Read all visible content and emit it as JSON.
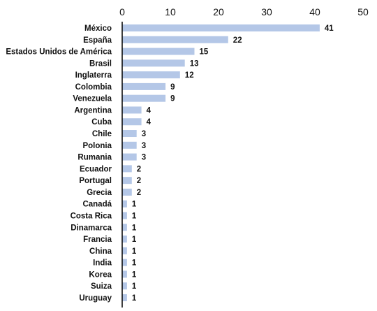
{
  "chart_data": {
    "type": "bar",
    "orientation": "horizontal",
    "categories": [
      "México",
      "España",
      "Estados Unidos de América",
      "Brasil",
      "Inglaterra",
      "Colombia",
      "Venezuela",
      "Argentina",
      "Cuba",
      "Chile",
      "Polonia",
      "Rumania",
      "Ecuador",
      "Portugal",
      "Grecia",
      "Canadá",
      "Costa Rica",
      "Dinamarca",
      "Francia",
      "China",
      "India",
      "Korea",
      "Suiza",
      "Uruguay"
    ],
    "values": [
      41,
      22,
      15,
      13,
      12,
      9,
      9,
      4,
      4,
      3,
      3,
      3,
      2,
      2,
      2,
      1,
      1,
      1,
      1,
      1,
      1,
      1,
      1,
      1
    ],
    "xlim": [
      0,
      50
    ],
    "xticks": [
      0,
      10,
      20,
      30,
      40,
      50
    ],
    "axis_position": "top",
    "grid": false,
    "legend": "none",
    "title": "",
    "xlabel": "",
    "ylabel": "",
    "colors": {
      "bar": "#b4c7e7",
      "axis": "#000000",
      "text": "#111111"
    }
  }
}
